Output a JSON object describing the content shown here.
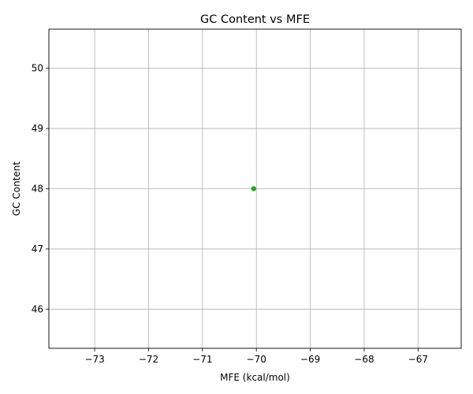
{
  "chart_data": {
    "type": "scatter",
    "title": "GC Content vs MFE",
    "xlabel": "MFE (kcal/mol)",
    "ylabel": "GC Content",
    "xlim": [
      -73.85,
      -66.2
    ],
    "ylim": [
      45.35,
      50.65
    ],
    "xticks": [
      -73,
      -72,
      -71,
      -70,
      -69,
      -68,
      -67
    ],
    "xtick_labels": [
      "−73",
      "−72",
      "−71",
      "−70",
      "−69",
      "−68",
      "−67"
    ],
    "yticks": [
      46,
      47,
      48,
      49,
      50
    ],
    "ytick_labels": [
      "46",
      "47",
      "48",
      "49",
      "50"
    ],
    "grid": true,
    "series": [
      {
        "points": [
          {
            "x": -70.05,
            "y": 48.0
          }
        ],
        "color": "#2ca02c"
      }
    ]
  }
}
